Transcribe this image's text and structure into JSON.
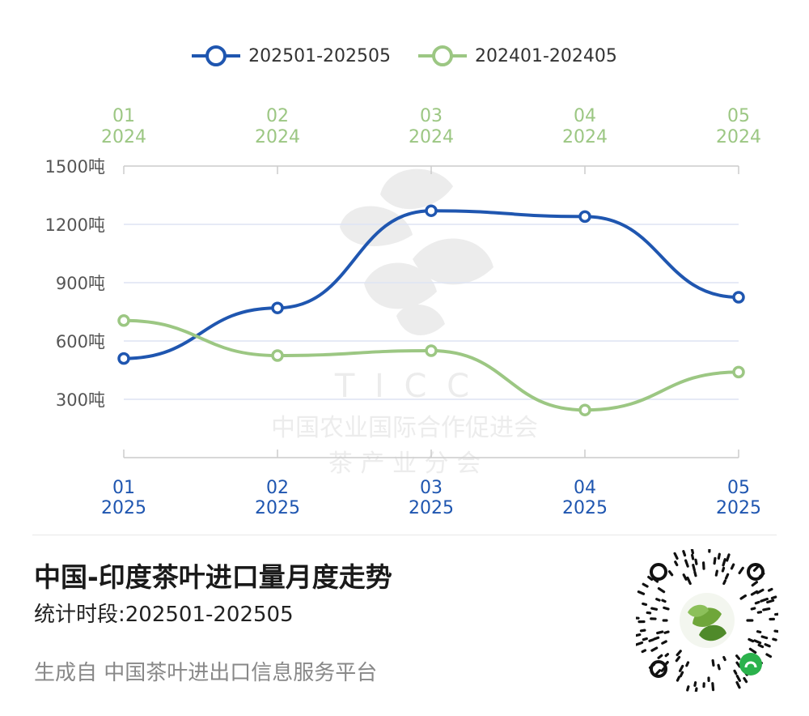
{
  "legend": {
    "series_2025": "202501-202505",
    "series_2024": "202401-202405"
  },
  "title": "中国-印度茶叶进口量月度走势",
  "subtitle": "统计时段:202501-202505",
  "source": "生成自 中国茶叶进出口信息服务平台",
  "watermark": {
    "letters": "T I C C",
    "org": "中国农业国际合作促进会",
    "sub": "茶  产  业  分  会"
  },
  "colors": {
    "series_2025": "#1f56b0",
    "series_2024": "#9cc783",
    "grid": "#dde3f3",
    "axis": "#cccccc",
    "ytick": "#555555"
  },
  "chart_data": {
    "type": "line",
    "x_bottom": [
      {
        "month": "01",
        "year": "2025"
      },
      {
        "month": "02",
        "year": "2025"
      },
      {
        "month": "03",
        "year": "2025"
      },
      {
        "month": "04",
        "year": "2025"
      },
      {
        "month": "05",
        "year": "2025"
      }
    ],
    "x_top": [
      {
        "month": "01",
        "year": "2024"
      },
      {
        "month": "02",
        "year": "2024"
      },
      {
        "month": "03",
        "year": "2024"
      },
      {
        "month": "04",
        "year": "2024"
      },
      {
        "month": "05",
        "year": "2024"
      }
    ],
    "yticks": [
      {
        "value": 300,
        "label": "300吨"
      },
      {
        "value": 600,
        "label": "600吨"
      },
      {
        "value": 900,
        "label": "900吨"
      },
      {
        "value": 1200,
        "label": "1200吨"
      },
      {
        "value": 1500,
        "label": "1500吨"
      }
    ],
    "ylim": [
      0,
      1500
    ],
    "series": [
      {
        "name": "202501-202505",
        "values": [
          510,
          770,
          1270,
          1240,
          825
        ]
      },
      {
        "name": "202401-202405",
        "values": [
          705,
          525,
          550,
          245,
          440
        ]
      }
    ],
    "grid": true,
    "legend_position": "top-center"
  }
}
